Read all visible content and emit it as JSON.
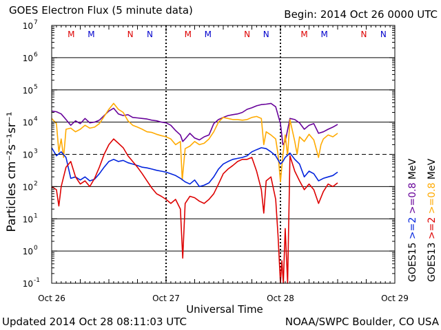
{
  "chart_data": {
    "type": "line",
    "title": "GOES Electron Flux (5 minute data)",
    "begin_label": "Begin: 2014 Oct 26 0000 UTC",
    "xlabel": "Universal Time",
    "ylabel": "Particles cm⁻²s⁻¹sr⁻¹",
    "x_ticks": [
      "Oct 26",
      "Oct 27",
      "Oct 28",
      "Oct 29"
    ],
    "xlim_hours": [
      0,
      72
    ],
    "ylim": [
      0.1,
      10000000
    ],
    "y_scale": "log",
    "y_ticks": [
      {
        "base": "10",
        "exp": "-1",
        "value": 0.1
      },
      {
        "base": "10",
        "exp": "0",
        "value": 1
      },
      {
        "base": "10",
        "exp": "1",
        "value": 10
      },
      {
        "base": "10",
        "exp": "2",
        "value": 100
      },
      {
        "base": "10",
        "exp": "3",
        "value": 1000
      },
      {
        "base": "10",
        "exp": "4",
        "value": 10000
      },
      {
        "base": "10",
        "exp": "5",
        "value": 100000
      },
      {
        "base": "10",
        "exp": "6",
        "value": 1000000
      },
      {
        "base": "10",
        "exp": "7",
        "value": 10000000
      }
    ],
    "threshold_line": 1000,
    "grid": true,
    "day_divider_hours": [
      24,
      48
    ],
    "satellite_markers": [
      {
        "label": "M",
        "hour": 4.1,
        "color": "#dd0000"
      },
      {
        "label": "M",
        "hour": 8.3,
        "color": "#0000cc"
      },
      {
        "label": "N",
        "hour": 16.5,
        "color": "#dd0000"
      },
      {
        "label": "N",
        "hour": 20.6,
        "color": "#0000cc"
      },
      {
        "label": "M",
        "hour": 28.6,
        "color": "#dd0000"
      },
      {
        "label": "M",
        "hour": 32.8,
        "color": "#0000cc"
      },
      {
        "label": "N",
        "hour": 41.0,
        "color": "#dd0000"
      },
      {
        "label": "N",
        "hour": 45.0,
        "color": "#0000cc"
      },
      {
        "label": "M",
        "hour": 53.0,
        "color": "#dd0000"
      },
      {
        "label": "M",
        "hour": 57.2,
        "color": "#0000cc"
      },
      {
        "label": "N",
        "hour": 65.5,
        "color": "#dd0000"
      },
      {
        "label": "N",
        "hour": 69.6,
        "color": "#0000cc"
      }
    ],
    "legend": [
      {
        "satellite": "GOES15",
        "energy": ">=2",
        "color": "#0022dd"
      },
      {
        "satellite": "GOES15",
        "energy": ">=0.8",
        "color": "#660099"
      },
      {
        "satellite": "GOES13",
        "energy": ">=2",
        "color": "#dd0000"
      },
      {
        "satellite": "GOES13",
        "energy": ">=0.8",
        "color": "#ffaa00"
      }
    ],
    "legend_units": "MeV",
    "legend_satellites": [
      "GOES15",
      "GOES13"
    ],
    "series": [
      {
        "name": "GOES15 >=0.8 MeV",
        "color": "#660099",
        "points": [
          [
            0,
            22000
          ],
          [
            1,
            21000
          ],
          [
            2,
            18000
          ],
          [
            3,
            12000
          ],
          [
            4,
            8000
          ],
          [
            5,
            11000
          ],
          [
            6,
            9000
          ],
          [
            7,
            13000
          ],
          [
            8,
            9500
          ],
          [
            9,
            10000
          ],
          [
            10,
            11500
          ],
          [
            11,
            16000
          ],
          [
            12,
            22000
          ],
          [
            13,
            27000
          ],
          [
            14,
            18000
          ],
          [
            15,
            16000
          ],
          [
            16,
            17000
          ],
          [
            17,
            14000
          ],
          [
            18,
            13500
          ],
          [
            19,
            13000
          ],
          [
            20,
            12500
          ],
          [
            21,
            11500
          ],
          [
            22,
            11000
          ],
          [
            23,
            10000
          ],
          [
            24,
            9500
          ],
          [
            25,
            8000
          ],
          [
            26,
            5500
          ],
          [
            27,
            4000
          ],
          [
            27.5,
            2500
          ],
          [
            28,
            3000
          ],
          [
            29,
            4500
          ],
          [
            30,
            3200
          ],
          [
            31,
            2800
          ],
          [
            32,
            3500
          ],
          [
            33,
            4000
          ],
          [
            34,
            9000
          ],
          [
            35,
            12000
          ],
          [
            36,
            14000
          ],
          [
            37,
            16000
          ],
          [
            38,
            17000
          ],
          [
            39,
            18000
          ],
          [
            40,
            20000
          ],
          [
            41,
            25000
          ],
          [
            42,
            28000
          ],
          [
            43,
            32000
          ],
          [
            44,
            35000
          ],
          [
            45,
            36000
          ],
          [
            46,
            38000
          ],
          [
            47,
            30000
          ],
          [
            48,
            9000
          ],
          [
            48.5,
            2000
          ],
          [
            49,
            2500
          ],
          [
            50,
            13000
          ],
          [
            51,
            12000
          ],
          [
            52,
            9500
          ],
          [
            53,
            6000
          ],
          [
            54,
            8000
          ],
          [
            55,
            9000
          ],
          [
            56,
            4500
          ],
          [
            57,
            5000
          ],
          [
            58,
            6000
          ],
          [
            59,
            7000
          ],
          [
            60,
            8500
          ]
        ]
      },
      {
        "name": "GOES13 >=0.8 MeV",
        "color": "#ffaa00",
        "points": [
          [
            0,
            13000
          ],
          [
            1,
            9000
          ],
          [
            1.5,
            1200
          ],
          [
            2,
            3000
          ],
          [
            2.5,
            800
          ],
          [
            3,
            6000
          ],
          [
            4,
            6500
          ],
          [
            5,
            5000
          ],
          [
            6,
            6000
          ],
          [
            7,
            8000
          ],
          [
            8,
            6500
          ],
          [
            9,
            7000
          ],
          [
            10,
            9000
          ],
          [
            11,
            15000
          ],
          [
            12,
            25000
          ],
          [
            13,
            38000
          ],
          [
            14,
            25000
          ],
          [
            15,
            20000
          ],
          [
            16,
            11000
          ],
          [
            17,
            8000
          ],
          [
            18,
            7000
          ],
          [
            19,
            6000
          ],
          [
            20,
            5000
          ],
          [
            21,
            4800
          ],
          [
            22,
            4200
          ],
          [
            23,
            3800
          ],
          [
            24,
            3500
          ],
          [
            25,
            3000
          ],
          [
            26,
            2000
          ],
          [
            27,
            2500
          ],
          [
            27.4,
            160
          ],
          [
            28,
            1500
          ],
          [
            29,
            1800
          ],
          [
            30,
            2500
          ],
          [
            31,
            2000
          ],
          [
            32,
            2200
          ],
          [
            33,
            3000
          ],
          [
            34,
            5000
          ],
          [
            35,
            10000
          ],
          [
            36,
            14000
          ],
          [
            37,
            13000
          ],
          [
            38,
            12000
          ],
          [
            39,
            12000
          ],
          [
            40,
            11500
          ],
          [
            41,
            12000
          ],
          [
            42,
            14000
          ],
          [
            43,
            15000
          ],
          [
            44,
            13000
          ],
          [
            44.5,
            2000
          ],
          [
            45,
            5000
          ],
          [
            46,
            4000
          ],
          [
            47,
            3000
          ],
          [
            47.5,
            1000
          ],
          [
            48,
            140
          ],
          [
            48.5,
            900
          ],
          [
            49,
            4000
          ],
          [
            49.5,
            900
          ],
          [
            50,
            12000
          ],
          [
            51,
            2500
          ],
          [
            51.5,
            1000
          ],
          [
            52,
            3500
          ],
          [
            53,
            2500
          ],
          [
            54,
            4200
          ],
          [
            55,
            2800
          ],
          [
            56,
            800
          ],
          [
            56.5,
            2000
          ],
          [
            57,
            3000
          ],
          [
            58,
            4000
          ],
          [
            59,
            3500
          ],
          [
            60,
            4500
          ]
        ]
      },
      {
        "name": "GOES15 >=2 MeV",
        "color": "#0022dd",
        "points": [
          [
            0,
            1600
          ],
          [
            1,
            900
          ],
          [
            2,
            1200
          ],
          [
            3,
            800
          ],
          [
            4,
            180
          ],
          [
            5,
            200
          ],
          [
            6,
            160
          ],
          [
            7,
            200
          ],
          [
            8,
            150
          ],
          [
            9,
            170
          ],
          [
            10,
            250
          ],
          [
            11,
            400
          ],
          [
            12,
            600
          ],
          [
            13,
            700
          ],
          [
            14,
            600
          ],
          [
            15,
            650
          ],
          [
            16,
            550
          ],
          [
            17,
            500
          ],
          [
            18,
            450
          ],
          [
            19,
            400
          ],
          [
            20,
            380
          ],
          [
            21,
            350
          ],
          [
            22,
            320
          ],
          [
            23,
            300
          ],
          [
            24,
            280
          ],
          [
            25,
            250
          ],
          [
            26,
            220
          ],
          [
            27,
            180
          ],
          [
            28,
            140
          ],
          [
            29,
            120
          ],
          [
            30,
            160
          ],
          [
            31,
            100
          ],
          [
            32,
            110
          ],
          [
            33,
            130
          ],
          [
            34,
            200
          ],
          [
            35,
            350
          ],
          [
            36,
            500
          ],
          [
            37,
            600
          ],
          [
            38,
            700
          ],
          [
            39,
            750
          ],
          [
            40,
            800
          ],
          [
            41,
            900
          ],
          [
            42,
            1200
          ],
          [
            43,
            1400
          ],
          [
            44,
            1600
          ],
          [
            45,
            1500
          ],
          [
            46,
            1200
          ],
          [
            47,
            900
          ],
          [
            48,
            500
          ],
          [
            48.5,
            600
          ],
          [
            49,
            800
          ],
          [
            50,
            1100
          ],
          [
            51,
            700
          ],
          [
            52,
            500
          ],
          [
            53,
            200
          ],
          [
            54,
            300
          ],
          [
            55,
            250
          ],
          [
            56,
            150
          ],
          [
            57,
            180
          ],
          [
            58,
            200
          ],
          [
            59,
            220
          ],
          [
            60,
            280
          ]
        ]
      },
      {
        "name": "GOES13 >=2 MeV",
        "color": "#dd0000",
        "points": [
          [
            0,
            100
          ],
          [
            1,
            80
          ],
          [
            1.5,
            25
          ],
          [
            2,
            100
          ],
          [
            3,
            400
          ],
          [
            4,
            600
          ],
          [
            5,
            200
          ],
          [
            6,
            120
          ],
          [
            7,
            150
          ],
          [
            8,
            100
          ],
          [
            9,
            180
          ],
          [
            10,
            400
          ],
          [
            11,
            1000
          ],
          [
            12,
            2000
          ],
          [
            13,
            3000
          ],
          [
            14,
            2200
          ],
          [
            15,
            1600
          ],
          [
            16,
            900
          ],
          [
            17,
            600
          ],
          [
            18,
            400
          ],
          [
            19,
            250
          ],
          [
            20,
            150
          ],
          [
            21,
            90
          ],
          [
            22,
            60
          ],
          [
            23,
            50
          ],
          [
            24,
            40
          ],
          [
            25,
            30
          ],
          [
            26,
            40
          ],
          [
            27,
            20
          ],
          [
            27.5,
            0.6
          ],
          [
            28,
            30
          ],
          [
            29,
            50
          ],
          [
            30,
            45
          ],
          [
            31,
            35
          ],
          [
            32,
            30
          ],
          [
            33,
            40
          ],
          [
            34,
            60
          ],
          [
            35,
            120
          ],
          [
            36,
            250
          ],
          [
            37,
            350
          ],
          [
            38,
            450
          ],
          [
            39,
            600
          ],
          [
            40,
            700
          ],
          [
            41,
            700
          ],
          [
            42,
            800
          ],
          [
            43,
            300
          ],
          [
            44,
            80
          ],
          [
            44.5,
            15
          ],
          [
            45,
            150
          ],
          [
            46,
            200
          ],
          [
            47,
            40
          ],
          [
            47.5,
            3
          ],
          [
            48,
            0.1
          ],
          [
            48.3,
            0.5
          ],
          [
            48.6,
            0.1
          ],
          [
            49,
            5
          ],
          [
            49.5,
            0.1
          ],
          [
            50,
            900
          ],
          [
            51,
            300
          ],
          [
            52,
            150
          ],
          [
            53,
            80
          ],
          [
            54,
            120
          ],
          [
            55,
            80
          ],
          [
            56,
            30
          ],
          [
            57,
            70
          ],
          [
            58,
            120
          ],
          [
            59,
            100
          ],
          [
            60,
            130
          ]
        ]
      }
    ]
  },
  "footer": {
    "updated": "Updated 2014 Oct 28 08:11:03 UTC",
    "credit": "NOAA/SWPC Boulder, CO USA"
  }
}
